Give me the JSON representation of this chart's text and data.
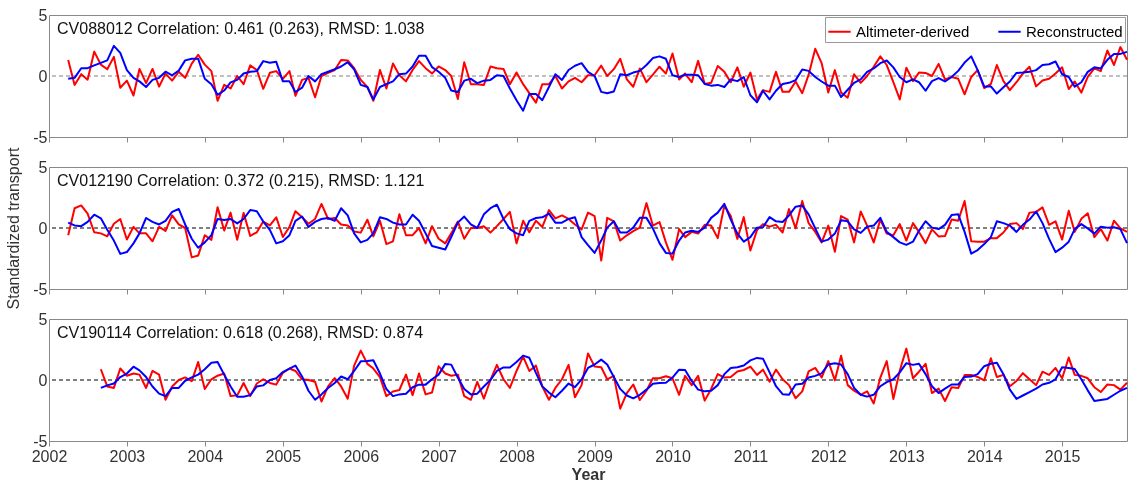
{
  "chart_data": [
    {
      "type": "line",
      "title": "CV088012  Correlation: 0.461 (0.263), RMSD: 1.038",
      "tick_labels": "y",
      "legend": "top right",
      "x": [
        "2002-04",
        "2002-05",
        "2002-06",
        "2002-07",
        "2002-08",
        "2002-09",
        "2002-10",
        "2002-11",
        "2002-12",
        "2003-01",
        "2003-02",
        "2003-03",
        "2003-04",
        "2003-05",
        "2003-06",
        "2003-07",
        "2003-08",
        "2003-09",
        "2003-10",
        "2003-11",
        "2003-12",
        "2004-01",
        "2004-02",
        "2004-03",
        "2004-04",
        "2004-05",
        "2004-06",
        "2004-07",
        "2004-08",
        "2004-09",
        "2004-10",
        "2004-11",
        "2004-12",
        "2005-01",
        "2005-02",
        "2005-03",
        "2005-04",
        "2005-05",
        "2005-06",
        "2005-07",
        "2005-08",
        "2005-09",
        "2005-10",
        "2005-11",
        "2005-12",
        "2006-01",
        "2006-02",
        "2006-03",
        "2006-04",
        "2006-05",
        "2006-06",
        "2006-07",
        "2006-08",
        "2006-09",
        "2006-10",
        "2006-11",
        "2006-12",
        "2007-01",
        "2007-02",
        "2007-03",
        "2007-04",
        "2007-05",
        "2007-06",
        "2007-07",
        "2007-08",
        "2007-09",
        "2007-10",
        "2007-11",
        "2007-12",
        "2008-01",
        "2008-02",
        "2008-03",
        "2008-04",
        "2008-05",
        "2008-06",
        "2008-07",
        "2008-08",
        "2008-09",
        "2008-10",
        "2008-11",
        "2008-12",
        "2009-01",
        "2009-02",
        "2009-03",
        "2009-04",
        "2009-05",
        "2009-06",
        "2009-07",
        "2009-08",
        "2009-09",
        "2009-10",
        "2009-11",
        "2009-12",
        "2010-01",
        "2010-02",
        "2010-03",
        "2010-04",
        "2010-05",
        "2010-06",
        "2010-07",
        "2010-08",
        "2010-09",
        "2010-10",
        "2010-11",
        "2010-12",
        "2011-01",
        "2011-02",
        "2011-03",
        "2011-04",
        "2011-05",
        "2011-06",
        "2011-07",
        "2011-08",
        "2011-09",
        "2011-10",
        "2011-11",
        "2011-12",
        "2012-01",
        "2012-02",
        "2012-03",
        "2012-04",
        "2012-05",
        "2012-06",
        "2012-07",
        "2012-08",
        "2012-09",
        "2012-10",
        "2012-11",
        "2012-12",
        "2013-01",
        "2013-02",
        "2013-03",
        "2013-04",
        "2013-05",
        "2013-06",
        "2013-07",
        "2013-08",
        "2013-09",
        "2013-10",
        "2013-11",
        "2013-12",
        "2014-01",
        "2014-02",
        "2014-03",
        "2014-04",
        "2014-05",
        "2014-06",
        "2014-07",
        "2014-08",
        "2014-09",
        "2014-10",
        "2014-11",
        "2014-12",
        "2015-01",
        "2015-02",
        "2015-03",
        "2015-04",
        "2015-05",
        "2015-06",
        "2015-07",
        "2015-08",
        "2015-09",
        "2015-10",
        "2015-11"
      ],
      "series": [
        {
          "name": "Altimeter-derived",
          "color": "#ff0000",
          "values": [
            1.31,
            -0.73,
            0.15,
            -0.3,
            2.0,
            0.93,
            0.55,
            1.57,
            -0.96,
            -0.38,
            -1.6,
            0.58,
            -0.58,
            0.58,
            -0.87,
            0.2,
            -0.38,
            0.35,
            -0.15,
            1.02,
            1.74,
            0.93,
            0.4,
            -2.03,
            -0.73,
            -1.02,
            0,
            -0.67,
            0.87,
            0.49,
            -1.05,
            0.26,
            0.4,
            -0.23,
            0.4,
            -1.63,
            -0.32,
            -0.15,
            -1.74,
            0,
            0.26,
            0.49,
            1.31,
            1.28,
            0.64,
            -0.32,
            -0.9,
            -2.03,
            0.49,
            -1.02,
            1.02,
            0.06,
            -0.44,
            0.49,
            1.22,
            0.64,
            0.2,
            0.78,
            0.49,
            0,
            -1.89,
            1.13,
            -0.67,
            -0.67,
            -0.73,
            0.78,
            0.64,
            0.58,
            -0.67,
            0.29,
            -0.67,
            -1.4,
            -2.18,
            -0.67,
            -0.67,
            0,
            -1.02,
            -0.44,
            -0.15,
            -0.51,
            0.06,
            0.06,
            0.85,
            0,
            0.56,
            1.41,
            -0.28,
            -0.88,
            0.62,
            -0.51,
            0.11,
            0.76,
            0.2,
            1.84,
            -0.28,
            0.2,
            -0.51,
            1.24,
            -0.65,
            -0.56,
            0.82,
            0.34,
            -0.51,
            0.71,
            -0.88,
            0.28,
            -1.92,
            -1.16,
            -1.3,
            0.34,
            -1.3,
            -1.3,
            -0.45,
            -1.41,
            0.11,
            2.23,
            1.05,
            -1.36,
            0.48,
            -1.36,
            -1.78,
            0.14,
            -0.56,
            0,
            0.76,
            1.61,
            0.9,
            -0.51,
            -1.92,
            0.68,
            -0.42,
            0.28,
            0.25,
            0,
            0.99,
            -0.28,
            -0.08,
            -0.23,
            -1.5,
            -0.08,
            0.48,
            -0.99,
            -0.65,
            0.9,
            -0.42,
            -1.16,
            -0.51,
            0.2,
            0.76,
            -0.85,
            -0.37,
            -0.23,
            0.2,
            0.71,
            -1.07,
            -0.45,
            -1.36,
            -0.08,
            0.62,
            0.4,
            2.09,
            0.9,
            2.37,
            1.33
          ]
        },
        {
          "name": "Reconstructed",
          "color": "#0000ff",
          "values": [
            -0.23,
            -0.15,
            0.64,
            0.64,
            0.87,
            1.08,
            1.28,
            2.47,
            1.89,
            0.49,
            -0.15,
            -0.44,
            -0.9,
            -0.32,
            -0.15,
            0.35,
            0.06,
            0.44,
            1.28,
            1.42,
            1.42,
            -0.23,
            -0.67,
            -1.54,
            -1.19,
            -0.52,
            -0.32,
            0.2,
            0.35,
            0.4,
            1.22,
            1.08,
            1.16,
            -0.44,
            -0.44,
            -1.31,
            -0.96,
            0,
            -0.44,
            0.15,
            0.35,
            0.55,
            0.78,
            1.13,
            0.55,
            -0.73,
            -0.9,
            -1.92,
            -0.9,
            -0.67,
            -0.44,
            0.15,
            0.2,
            0.78,
            1.66,
            1.66,
            0.73,
            0.35,
            -0.15,
            -1.19,
            -1.31,
            -0.38,
            -0.23,
            -0.58,
            -0.38,
            -0.32,
            0.06,
            0,
            -1.02,
            -1.98,
            -2.85,
            -1.48,
            -1.48,
            -1.98,
            -0.9,
            0.15,
            -0.32,
            0.49,
            0.84,
            1.05,
            0.34,
            0,
            -1.3,
            -1.41,
            -1.27,
            0.14,
            0.06,
            0.28,
            0.42,
            0.9,
            1.47,
            1.61,
            1.41,
            0.06,
            -0.08,
            0.11,
            0.11,
            0.06,
            -0.65,
            -0.79,
            -0.73,
            -0.9,
            -0.28,
            -0.42,
            -0.08,
            -1.58,
            -2.15,
            -1.21,
            -1.92,
            -1.21,
            -0.65,
            -0.56,
            -0.34,
            0.54,
            0.42,
            -0.08,
            -0.45,
            -0.79,
            -0.79,
            -1.72,
            -1.13,
            -0.56,
            -0.28,
            0.34,
            0.62,
            1.05,
            1.27,
            0.71,
            -0.08,
            -0.51,
            -0.28,
            -0.51,
            -1.21,
            -0.42,
            -0.17,
            -0.45,
            -0.08,
            0.42,
            1.1,
            1.61,
            0.48,
            -0.88,
            -0.85,
            -1.44,
            -0.93,
            -0.45,
            0.25,
            0.28,
            0.34,
            0.48,
            0.9,
            0.96,
            1.19,
            0.14,
            -0.08,
            -0.88,
            -0.51,
            0.34,
            0.71,
            0.62,
            1.33,
            1.81,
            1.81,
            1.98
          ]
        }
      ],
      "xlim": [
        "2002-01",
        "2015-11"
      ],
      "xticks": [
        "2002",
        "2003",
        "2004",
        "2005",
        "2006",
        "2007",
        "2008",
        "2009",
        "2010",
        "2011",
        "2012",
        "2013",
        "2014",
        "2015"
      ],
      "ylim": [
        -5,
        5
      ],
      "yticks": [
        -5,
        0,
        5
      ],
      "ref_lines": [
        {
          "axis": "y",
          "value": 0,
          "color": "#808080",
          "line_style": "dashed"
        }
      ]
    },
    {
      "type": "line",
      "title": "CV012190  Correlation: 0.372 (0.215), RMSD: 1.121",
      "ylabel": "Standardized transport",
      "tick_labels": "y",
      "x": [
        "2002-04",
        "2002-05",
        "2002-06",
        "2002-07",
        "2002-08",
        "2002-09",
        "2002-10",
        "2002-11",
        "2002-12",
        "2003-01",
        "2003-02",
        "2003-03",
        "2003-04",
        "2003-05",
        "2003-06",
        "2003-07",
        "2003-08",
        "2003-09",
        "2003-10",
        "2003-11",
        "2003-12",
        "2004-01",
        "2004-02",
        "2004-03",
        "2004-04",
        "2004-05",
        "2004-06",
        "2004-07",
        "2004-08",
        "2004-09",
        "2004-10",
        "2004-11",
        "2004-12",
        "2005-01",
        "2005-02",
        "2005-03",
        "2005-04",
        "2005-05",
        "2005-06",
        "2005-07",
        "2005-08",
        "2005-09",
        "2005-10",
        "2005-11",
        "2005-12",
        "2006-01",
        "2006-02",
        "2006-03",
        "2006-04",
        "2006-05",
        "2006-06",
        "2006-07",
        "2006-08",
        "2006-09",
        "2006-10",
        "2006-11",
        "2006-12",
        "2007-01",
        "2007-02",
        "2007-03",
        "2007-04",
        "2007-05",
        "2007-06",
        "2007-07",
        "2007-08",
        "2007-09",
        "2007-10",
        "2007-11",
        "2007-12",
        "2008-01",
        "2008-02",
        "2008-03",
        "2008-04",
        "2008-05",
        "2008-06",
        "2008-07",
        "2008-08",
        "2008-09",
        "2008-10",
        "2008-11",
        "2008-12",
        "2009-01",
        "2009-02",
        "2009-03",
        "2009-04",
        "2009-05",
        "2009-06",
        "2009-07",
        "2009-08",
        "2009-09",
        "2009-10",
        "2009-11",
        "2009-12",
        "2010-01",
        "2010-02",
        "2010-03",
        "2010-04",
        "2010-05",
        "2010-06",
        "2010-07",
        "2010-08",
        "2010-09",
        "2010-10",
        "2010-11",
        "2010-12",
        "2011-01",
        "2011-02",
        "2011-03",
        "2011-04",
        "2011-05",
        "2011-06",
        "2011-07",
        "2011-08",
        "2011-09",
        "2011-10",
        "2011-11",
        "2011-12",
        "2012-01",
        "2012-02",
        "2012-03",
        "2012-04",
        "2012-05",
        "2012-06",
        "2012-07",
        "2012-08",
        "2012-09",
        "2012-10",
        "2012-11",
        "2012-12",
        "2013-01",
        "2013-02",
        "2013-03",
        "2013-04",
        "2013-05",
        "2013-06",
        "2013-07",
        "2013-08",
        "2013-09",
        "2013-10",
        "2013-11",
        "2013-12",
        "2014-01",
        "2014-02",
        "2014-03",
        "2014-04",
        "2014-05",
        "2014-06",
        "2014-07",
        "2014-08",
        "2014-09",
        "2014-10",
        "2014-11",
        "2014-12",
        "2015-01",
        "2015-02",
        "2015-03",
        "2015-04",
        "2015-05",
        "2015-06",
        "2015-07",
        "2015-08",
        "2015-09",
        "2015-10",
        "2015-11"
      ],
      "series": [
        {
          "color": "#ff0000",
          "values": [
            -0.59,
            1.62,
            1.85,
            1.18,
            -0.35,
            -0.44,
            -0.68,
            0.35,
            0.74,
            -0.94,
            0.09,
            -0.44,
            -0.44,
            -1.09,
            0.09,
            -0.24,
            1.03,
            0.29,
            0,
            -2.41,
            -2.26,
            -0.59,
            -0.97,
            1.71,
            -0.21,
            1.26,
            -0.97,
            1.24,
            -0.65,
            -0.35,
            0.53,
            0.21,
            0.88,
            -0.74,
            0.09,
            1.38,
            0.88,
            0.35,
            0.74,
            1.97,
            0.74,
            0.82,
            0.29,
            0.21,
            -0.29,
            -0.38,
            0.68,
            -0.68,
            0.59,
            -1.32,
            -1.09,
            1.12,
            -0.59,
            -0.59,
            0,
            -1.26,
            0.15,
            -0.88,
            -1.26,
            -0.44,
            0.53,
            -0.88,
            0,
            0,
            0.15,
            -0.38,
            0.15,
            0.74,
            1.32,
            -1.26,
            0.59,
            -0.35,
            0.59,
            0.09,
            1.47,
            0.79,
            1.03,
            0.74,
            0.29,
            -0.11,
            1.26,
            0.98,
            -2.67,
            0.83,
            0.55,
            -1.03,
            -0.6,
            -0.26,
            0.03,
            2.04,
            0.2,
            0.49,
            -1.18,
            -2.61,
            -0.09,
            -0.75,
            -0.32,
            -0.46,
            0.26,
            0.2,
            -0.83,
            1.84,
            0.98,
            -0.89,
            0.89,
            -1.84,
            -0.17,
            0.32,
            0.11,
            0.26,
            -0.37,
            1.55,
            -0.03,
            2.21,
            0.4,
            -0.32,
            -1.18,
            0.2,
            -1.95,
            0.98,
            0.69,
            -1.18,
            1.35,
            0.2,
            -1.18,
            0.69,
            -0.46,
            -0.6,
            0.32,
            -1.03,
            0.4,
            -0.32,
            -1.24,
            -0.11,
            -0.69,
            -0.66,
            0.69,
            0.6,
            2.21,
            -1.09,
            -1.12,
            -1.12,
            -0.83,
            -0.83,
            -0.37,
            0.32,
            0.4,
            -0.09,
            1.26,
            1.32,
            1.69,
            0.26,
            0.55,
            -0.95,
            1.41,
            -0.32,
            0.75,
            1.21,
            -0.75,
            -0.09,
            -1.03,
            0.6,
            -0.03,
            -0.32
          ]
        },
        {
          "color": "#0000ff",
          "values": [
            0.44,
            0.21,
            0.15,
            0.5,
            1.09,
            0.79,
            -0.15,
            -1.03,
            -2.12,
            -1.97,
            -1.26,
            -0.44,
            0.82,
            0.5,
            0.29,
            0.59,
            1.32,
            1.56,
            0.29,
            -0.88,
            -1.62,
            -1.18,
            -0.59,
            0.74,
            0.65,
            0.74,
            0.38,
            0.74,
            1.47,
            1.38,
            0.53,
            -0.15,
            -1.26,
            -1.09,
            -0.59,
            0.59,
            0.94,
            0.09,
            0.5,
            0.74,
            0.82,
            0.59,
            1.62,
            1.03,
            -0.44,
            -1.18,
            -0.97,
            -0.44,
            0.88,
            0.74,
            0.44,
            0.29,
            0.29,
            1.09,
            0.59,
            -0.44,
            -1.47,
            -1.62,
            -1.76,
            -0.74,
            0.44,
            0.94,
            0.29,
            0,
            1.12,
            1.62,
            1.91,
            0.74,
            -0.09,
            -0.44,
            -0.59,
            0.59,
            0.82,
            0.88,
            1.18,
            0.44,
            0.44,
            0.74,
            0.88,
            -0.75,
            -1.41,
            -2.04,
            -1.03,
            0.03,
            0.55,
            -0.37,
            -0.37,
            0.03,
            0.83,
            0.83,
            -0.03,
            -1.24,
            -2.04,
            -2.1,
            -1.03,
            -0.37,
            -0.23,
            -0.32,
            0.03,
            0.83,
            1.26,
            1.98,
            0.69,
            -0.46,
            -1.12,
            -0.75,
            0.03,
            0.06,
            0.89,
            0.55,
            0.49,
            1.03,
            1.75,
            1.84,
            1.12,
            -0.03,
            -1.12,
            -0.95,
            -0.46,
            0.63,
            0.55,
            -0.11,
            -0.4,
            0.11,
            0.2,
            0.83,
            -0.32,
            -0.75,
            -1.18,
            -1.38,
            -1.12,
            -0.23,
            0.55,
            0.03,
            -0.09,
            0.26,
            1.06,
            1.12,
            -0.32,
            -2.1,
            -1.81,
            -1.32,
            -0.75,
            0.55,
            0.4,
            0.2,
            -0.32,
            0.26,
            0.69,
            1.35,
            0.4,
            -0.89,
            -1.98,
            -1.61,
            -1.12,
            -0.09,
            0.32,
            -0.03,
            -0.46,
            0.11,
            0.03,
            0.06,
            -0.09,
            -1.24
          ]
        }
      ],
      "xlim": [
        "2002-01",
        "2015-11"
      ],
      "xticks": [
        "2002",
        "2003",
        "2004",
        "2005",
        "2006",
        "2007",
        "2008",
        "2009",
        "2010",
        "2011",
        "2012",
        "2013",
        "2014",
        "2015"
      ],
      "ylim": [
        -5,
        5
      ],
      "yticks": [
        -5,
        0,
        5
      ],
      "ref_lines": [
        {
          "axis": "y",
          "value": 0,
          "color": "#000000",
          "line_style": "dashed"
        }
      ]
    },
    {
      "type": "line",
      "title": "CV190114  Correlation: 0.618 (0.268), RMSD: 0.874",
      "xlabel": "Year",
      "x": [
        "2002-09",
        "2002-10",
        "2002-11",
        "2002-12",
        "2003-01",
        "2003-02",
        "2003-03",
        "2003-04",
        "2003-05",
        "2003-06",
        "2003-07",
        "2003-08",
        "2003-09",
        "2003-10",
        "2003-11",
        "2003-12",
        "2004-01",
        "2004-02",
        "2004-03",
        "2004-04",
        "2004-05",
        "2004-06",
        "2004-07",
        "2004-08",
        "2004-09",
        "2004-10",
        "2004-11",
        "2004-12",
        "2005-01",
        "2005-02",
        "2005-03",
        "2005-04",
        "2005-05",
        "2005-06",
        "2005-07",
        "2005-08",
        "2005-09",
        "2005-10",
        "2005-11",
        "2005-12",
        "2006-01",
        "2006-02",
        "2006-03",
        "2006-04",
        "2006-05",
        "2006-06",
        "2006-07",
        "2006-08",
        "2006-09",
        "2006-10",
        "2006-11",
        "2006-12",
        "2007-01",
        "2007-02",
        "2007-03",
        "2007-04",
        "2007-05",
        "2007-06",
        "2007-07",
        "2007-08",
        "2007-09",
        "2007-10",
        "2007-11",
        "2007-12",
        "2008-01",
        "2008-02",
        "2008-03",
        "2008-04",
        "2008-05",
        "2008-06",
        "2008-07",
        "2008-08",
        "2008-09",
        "2008-10",
        "2008-11",
        "2008-12",
        "2009-01",
        "2009-02",
        "2009-03",
        "2009-04",
        "2009-05",
        "2009-06",
        "2009-07",
        "2009-08",
        "2009-09",
        "2009-10",
        "2009-11",
        "2009-12",
        "2010-01",
        "2010-02",
        "2010-03",
        "2010-04",
        "2010-05",
        "2010-06",
        "2010-07",
        "2010-08",
        "2010-09",
        "2010-10",
        "2010-11",
        "2010-12",
        "2011-01",
        "2011-02",
        "2011-03",
        "2011-04",
        "2011-05",
        "2011-06",
        "2011-07",
        "2011-08",
        "2011-09",
        "2011-10",
        "2011-11",
        "2011-12",
        "2012-01",
        "2012-02",
        "2012-03",
        "2012-04",
        "2012-05",
        "2012-06",
        "2012-07",
        "2012-08",
        "2012-09",
        "2012-10",
        "2012-11",
        "2012-12",
        "2013-01",
        "2013-02",
        "2013-03",
        "2013-04",
        "2013-05",
        "2013-06",
        "2013-07",
        "2013-08",
        "2013-09",
        "2013-10",
        "2013-11",
        "2013-12",
        "2014-01",
        "2014-02",
        "2014-03",
        "2014-04",
        "2014-05",
        "2014-06",
        "2014-07",
        "2014-08",
        "2014-09",
        "2014-10",
        "2014-11",
        "2014-12",
        "2015-01",
        "2015-02",
        "2015-03",
        "2015-04",
        "2015-05",
        "2015-06",
        "2015-07",
        "2015-08",
        "2015-09",
        "2015-10",
        "2015-11"
      ],
      "series": [
        {
          "color": "#ff0000",
          "values": [
            0.88,
            -0.53,
            -0.65,
            0.94,
            0.35,
            0.53,
            0.44,
            -0.65,
            0.74,
            0.44,
            -1.62,
            -0.53,
            0,
            0.21,
            -0.09,
            1.47,
            -0.74,
            0.06,
            0.35,
            0.53,
            -1.32,
            -1.26,
            -0.24,
            -1.32,
            -0.29,
            0.06,
            -0.24,
            -0.38,
            0.59,
            0.94,
            0.74,
            0.06,
            0,
            -0.15,
            -1.76,
            -0.53,
            0.15,
            -0.53,
            -1.53,
            1.18,
            2.41,
            1.32,
            0.94,
            0.24,
            -1.32,
            -0.94,
            -0.82,
            0.44,
            -1.24,
            0.53,
            -1.18,
            -1.03,
            1.12,
            0.53,
            0.35,
            0.44,
            -1.32,
            -1.62,
            -0.15,
            -1.53,
            0,
            1.24,
            0.06,
            -0.65,
            0.74,
            1.91,
            0.74,
            1.18,
            -0.53,
            -1.62,
            -0.65,
            0.06,
            1.24,
            -1.41,
            -0.42,
            2.18,
            1.1,
            1.05,
            0.06,
            0.34,
            -2.35,
            -1.07,
            -0.37,
            -1.64,
            -0.88,
            0.14,
            0.14,
            0.31,
            0.14,
            -1.21,
            0.34,
            -0.42,
            0.34,
            -1.69,
            -0.73,
            0.48,
            0.2,
            0.25,
            0.7,
            0.82,
            1.1,
            0.42,
            0.85,
            -0.14,
            0.85,
            0.06,
            -0.42,
            -1.5,
            -0.93,
            0.71,
            0.99,
            0.2,
            1.55,
            -0.03,
            1.98,
            -0.42,
            -0.88,
            -1.21,
            -0.93,
            -1.92,
            0.2,
            1.55,
            -1.55,
            0.76,
            2.57,
            0.14,
            0.68,
            1.33,
            -1.07,
            -0.71,
            -1.72,
            -0.59,
            -0.65,
            0.4,
            0.42,
            0.25,
            -0.03,
            1.78,
            0.25,
            0.42,
            -0.51,
            -0.08,
            0.56,
            0.06,
            -0.42,
            0.68,
            0.42,
            0.99,
            0.14,
            1.84,
            0.42,
            0.34,
            0.14,
            -0.59,
            -0.99,
            -0.37,
            -0.42,
            -0.79,
            -0.23
          ]
        },
        {
          "color": "#0000ff",
          "values": [
            -0.65,
            -0.44,
            -0.29,
            0.24,
            0.53,
            1.09,
            0.79,
            0.24,
            -0.53,
            -1.12,
            -1.32,
            -0.65,
            -0.65,
            -0.06,
            0.21,
            0.44,
            0.88,
            1.41,
            1.47,
            0.44,
            -0.53,
            -1.38,
            -1.38,
            -1.24,
            -0.53,
            -0.44,
            0,
            0.15,
            0.65,
            0.94,
            1.18,
            0.29,
            -0.88,
            -1.62,
            -1.18,
            -0.65,
            -0.24,
            0.29,
            0.06,
            0.74,
            1.53,
            1.56,
            1.62,
            0.53,
            -0.74,
            -1.32,
            -1.18,
            -1.12,
            -0.59,
            -0.38,
            -0.38,
            0.06,
            0.44,
            1.32,
            1.26,
            0.21,
            -0.74,
            -1.18,
            -1.12,
            -0.53,
            0,
            0.74,
            1.03,
            1.03,
            1.47,
            2.0,
            1.82,
            0.59,
            -0.53,
            -1.03,
            -1.41,
            -0.88,
            -0.29,
            -0.59,
            0.06,
            0.99,
            1.27,
            1.67,
            1.27,
            0.25,
            -0.73,
            -1.27,
            -1.5,
            -1.21,
            -0.79,
            -0.31,
            -0.25,
            -0.23,
            0.2,
            0.85,
            0.82,
            -0.08,
            -0.79,
            -0.93,
            -0.88,
            -0.42,
            0.48,
            0.99,
            1.05,
            1.19,
            1.61,
            1.81,
            1.75,
            0.62,
            -0.51,
            -1.16,
            -1.21,
            -0.37,
            -0.31,
            0.2,
            0.34,
            0.54,
            1.27,
            1.38,
            1.27,
            0.48,
            -0.65,
            -1.21,
            -1.36,
            -1.21,
            -0.51,
            -0.17,
            0.06,
            0.62,
            1.38,
            1.24,
            1.33,
            0.48,
            -0.51,
            -1.07,
            -0.71,
            -0.37,
            -0.37,
            0.25,
            0.28,
            0.48,
            1.13,
            1.33,
            1.41,
            0.48,
            -0.79,
            -1.55,
            -1.27,
            -0.99,
            -0.71,
            -0.37,
            -0.23,
            0.06,
            1.05,
            0.99,
            0.9,
            0.06,
            -0.85,
            -1.72,
            -1.64,
            -1.55,
            -1.21,
            -0.88,
            -0.65
          ]
        }
      ],
      "xlim": [
        "2002-01",
        "2015-11"
      ],
      "xticks": [
        "2002",
        "2003",
        "2004",
        "2005",
        "2006",
        "2007",
        "2008",
        "2009",
        "2010",
        "2011",
        "2012",
        "2013",
        "2014",
        "2015"
      ],
      "ylim": [
        -5,
        5
      ],
      "yticks": [
        -5,
        0,
        5
      ],
      "ref_lines": [
        {
          "axis": "y",
          "value": 0,
          "color": "#000000",
          "line_style": "dashed"
        }
      ]
    }
  ]
}
